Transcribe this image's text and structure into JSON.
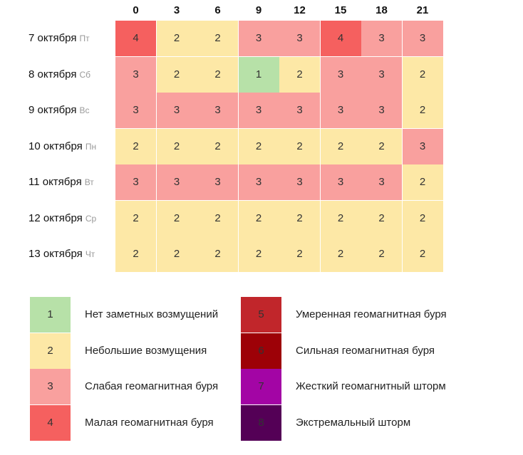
{
  "hours": [
    "0",
    "3",
    "6",
    "9",
    "12",
    "15",
    "18",
    "21"
  ],
  "days": [
    {
      "date": "7 октября",
      "dow": "Пт",
      "values": [
        4,
        2,
        2,
        3,
        3,
        4,
        3,
        3
      ]
    },
    {
      "date": "8 октября",
      "dow": "Сб",
      "values": [
        3,
        2,
        2,
        1,
        2,
        3,
        3,
        2
      ]
    },
    {
      "date": "9 октября",
      "dow": "Вс",
      "values": [
        3,
        3,
        3,
        3,
        3,
        3,
        3,
        2
      ]
    },
    {
      "date": "10 октября",
      "dow": "Пн",
      "values": [
        2,
        2,
        2,
        2,
        2,
        2,
        2,
        3
      ]
    },
    {
      "date": "11 октября",
      "dow": "Вт",
      "values": [
        3,
        3,
        3,
        3,
        3,
        3,
        3,
        2
      ]
    },
    {
      "date": "12 октября",
      "dow": "Ср",
      "values": [
        2,
        2,
        2,
        2,
        2,
        2,
        2,
        2
      ]
    },
    {
      "date": "13 октября",
      "dow": "Чт",
      "values": [
        2,
        2,
        2,
        2,
        2,
        2,
        2,
        2
      ]
    }
  ],
  "level_colors": {
    "1": "#b7e1a8",
    "2": "#fde8a6",
    "3": "#f9a09e",
    "4": "#f5605f",
    "5": "#c1262b",
    "6": "#9d0107",
    "7": "#a305a5",
    "8": "#540056"
  },
  "legend": [
    {
      "level": "1",
      "label": "Нет заметных возмущений"
    },
    {
      "level": "2",
      "label": "Небольшие возмущения"
    },
    {
      "level": "3",
      "label": "Слабая геомагнитная буря"
    },
    {
      "level": "4",
      "label": "Малая геомагнитная буря"
    },
    {
      "level": "5",
      "label": "Умеренная геомагнитная буря"
    },
    {
      "level": "6",
      "label": "Сильная геомагнитная буря"
    },
    {
      "level": "7",
      "label": "Жесткий геомагнитный шторм"
    },
    {
      "level": "8",
      "label": "Экстремальный шторм"
    }
  ]
}
